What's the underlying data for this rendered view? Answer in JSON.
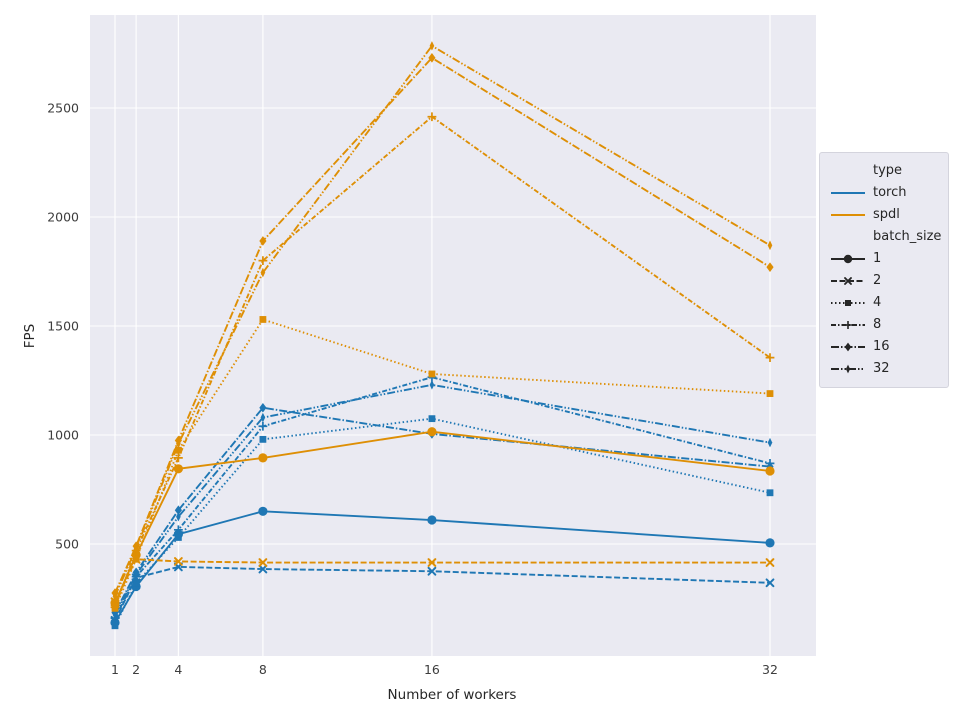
{
  "figure": {
    "background": "#ffffff",
    "axes_background": "#eaeaf2",
    "grid_color": "#ffffff",
    "text_color": "#262626",
    "tick_color": "#3d3d3d"
  },
  "chart_data": {
    "type": "line",
    "title": "",
    "xlabel": "Number of workers",
    "ylabel": "FPS",
    "x": [
      1,
      2,
      4,
      8,
      16,
      32
    ],
    "x_ticks": [
      "1",
      "2",
      "4",
      "8",
      "16",
      "32"
    ],
    "y_ticks": [
      500,
      1000,
      1500,
      2000,
      2500
    ],
    "xlim": [
      -0.2,
      34.2
    ],
    "ylim": [
      -14,
      2927
    ],
    "grid": true,
    "legend_position": "right-outside",
    "colors": {
      "torch": "#1f77b4",
      "spdl": "#de8f05"
    },
    "series": [
      {
        "name": "torch-batch-1",
        "type": "torch",
        "batch_size": 1,
        "color": "#1f77b4",
        "dash": "",
        "marker": "circle",
        "values": [
          140,
          305,
          545,
          650,
          610,
          505
        ]
      },
      {
        "name": "torch-batch-2",
        "type": "torch",
        "batch_size": 2,
        "color": "#1f77b4",
        "dash": "6,2.5",
        "marker": "x",
        "values": [
          150,
          345,
          395,
          385,
          375,
          322
        ]
      },
      {
        "name": "torch-batch-4",
        "type": "torch",
        "batch_size": 4,
        "color": "#1f77b4",
        "dash": "1.5,2.5",
        "marker": "square",
        "values": [
          125,
          320,
          530,
          980,
          1075,
          735
        ]
      },
      {
        "name": "torch-batch-8",
        "type": "torch",
        "batch_size": 8,
        "color": "#1f77b4",
        "dash": "5,2,1.5,2",
        "marker": "plus",
        "values": [
          160,
          350,
          565,
          1040,
          1265,
          870
        ]
      },
      {
        "name": "torch-batch-16",
        "type": "torch",
        "batch_size": 16,
        "color": "#1f77b4",
        "dash": "8,2,1.5,2",
        "marker": "diamond",
        "values": [
          185,
          370,
          655,
          1125,
          1005,
          855
        ]
      },
      {
        "name": "torch-batch-32",
        "type": "torch",
        "batch_size": 32,
        "color": "#1f77b4",
        "dash": "8,2,1.5,2,1.5,2",
        "marker": "thin-diamond",
        "values": [
          175,
          360,
          625,
          1080,
          1230,
          965
        ]
      },
      {
        "name": "spdl-batch-1",
        "type": "spdl",
        "batch_size": 1,
        "color": "#de8f05",
        "dash": "",
        "marker": "circle",
        "values": [
          230,
          450,
          845,
          895,
          1015,
          835
        ]
      },
      {
        "name": "spdl-batch-2",
        "type": "spdl",
        "batch_size": 2,
        "color": "#de8f05",
        "dash": "6,2.5",
        "marker": "x",
        "values": [
          235,
          430,
          420,
          415,
          415,
          415
        ]
      },
      {
        "name": "spdl-batch-4",
        "type": "spdl",
        "batch_size": 4,
        "color": "#de8f05",
        "dash": "1.5,2.5",
        "marker": "square",
        "values": [
          205,
          430,
          930,
          1530,
          1280,
          1190
        ]
      },
      {
        "name": "spdl-batch-8",
        "type": "spdl",
        "batch_size": 8,
        "color": "#de8f05",
        "dash": "5,2,1.5,2",
        "marker": "plus",
        "values": [
          210,
          470,
          895,
          1800,
          2460,
          1355
        ]
      },
      {
        "name": "spdl-batch-16",
        "type": "spdl",
        "batch_size": 16,
        "color": "#de8f05",
        "dash": "8,2,1.5,2",
        "marker": "diamond",
        "values": [
          275,
          490,
          975,
          1890,
          2730,
          1770
        ]
      },
      {
        "name": "spdl-batch-32",
        "type": "spdl",
        "batch_size": 32,
        "color": "#de8f05",
        "dash": "8,2,1.5,2,1.5,2",
        "marker": "thin-diamond",
        "values": [
          260,
          480,
          960,
          1745,
          2785,
          1870
        ]
      }
    ],
    "legend": {
      "entries": [
        {
          "label": "type",
          "kind": "header"
        },
        {
          "label": "torch",
          "kind": "line",
          "color": "#1f77b4",
          "dash": "",
          "marker": ""
        },
        {
          "label": "spdl",
          "kind": "line",
          "color": "#de8f05",
          "dash": "",
          "marker": ""
        },
        {
          "label": "batch_size",
          "kind": "header"
        },
        {
          "label": "1",
          "kind": "line",
          "color": "#262626",
          "dash": "",
          "marker": "circle"
        },
        {
          "label": "2",
          "kind": "line",
          "color": "#262626",
          "dash": "6,2.5",
          "marker": "x"
        },
        {
          "label": "4",
          "kind": "line",
          "color": "#262626",
          "dash": "1.5,2.5",
          "marker": "square"
        },
        {
          "label": "8",
          "kind": "line",
          "color": "#262626",
          "dash": "5,2,1.5,2",
          "marker": "plus"
        },
        {
          "label": "16",
          "kind": "line",
          "color": "#262626",
          "dash": "8,2,1.5,2",
          "marker": "diamond"
        },
        {
          "label": "32",
          "kind": "line",
          "color": "#262626",
          "dash": "8,2,1.5,2,1.5,2",
          "marker": "thin-diamond"
        }
      ]
    }
  }
}
